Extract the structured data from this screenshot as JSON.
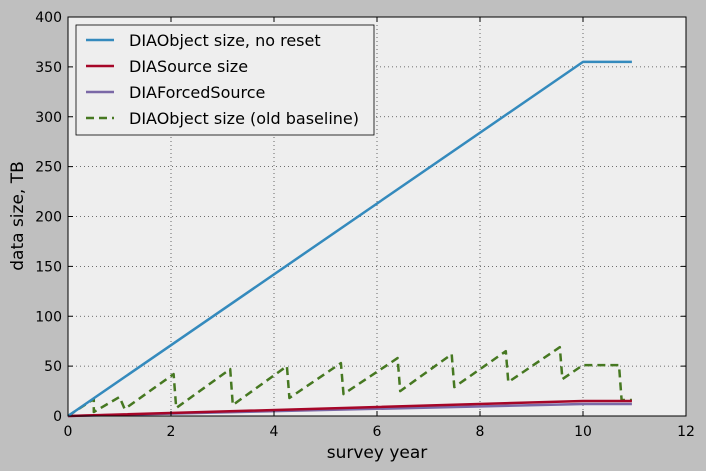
{
  "chart_data": {
    "type": "line",
    "title": "",
    "xlabel": "survey year",
    "ylabel": "data size, TB",
    "xlim": [
      0,
      12
    ],
    "ylim": [
      0,
      400
    ],
    "xticks": [
      0,
      2,
      4,
      6,
      8,
      10,
      12
    ],
    "yticks": [
      0,
      50,
      100,
      150,
      200,
      250,
      300,
      350,
      400
    ],
    "grid": true,
    "legend_position": "top-left",
    "series": [
      {
        "name": "DIAObject size, no reset",
        "color": "#348abd",
        "style": "solid",
        "x": [
          0,
          10,
          10.95
        ],
        "y": [
          0,
          355,
          355
        ]
      },
      {
        "name": "DIASource size",
        "color": "#a60628",
        "style": "solid",
        "x": [
          0,
          10,
          10.95
        ],
        "y": [
          0,
          15,
          15
        ]
      },
      {
        "name": "DIAForcedSource",
        "color": "#7a68a6",
        "style": "solid",
        "x": [
          0,
          10,
          10.95
        ],
        "y": [
          0,
          12,
          12
        ]
      },
      {
        "name": "DIAObject size (old baseline)",
        "color": "#467821",
        "style": "dashed",
        "x": [
          0,
          0.5,
          0.5,
          1.0,
          1.1,
          2.05,
          2.1,
          3.15,
          3.2,
          4.25,
          4.3,
          5.3,
          5.35,
          6.4,
          6.45,
          7.45,
          7.5,
          8.5,
          8.55,
          9.55,
          9.6,
          10.0,
          10.05,
          10.7,
          10.75,
          10.95
        ],
        "y": [
          0,
          17,
          4,
          19,
          7,
          42,
          8,
          47,
          11,
          50,
          18,
          53,
          22,
          58,
          25,
          62,
          29,
          65,
          34,
          69,
          37,
          51,
          51,
          51,
          16,
          16
        ]
      }
    ]
  }
}
